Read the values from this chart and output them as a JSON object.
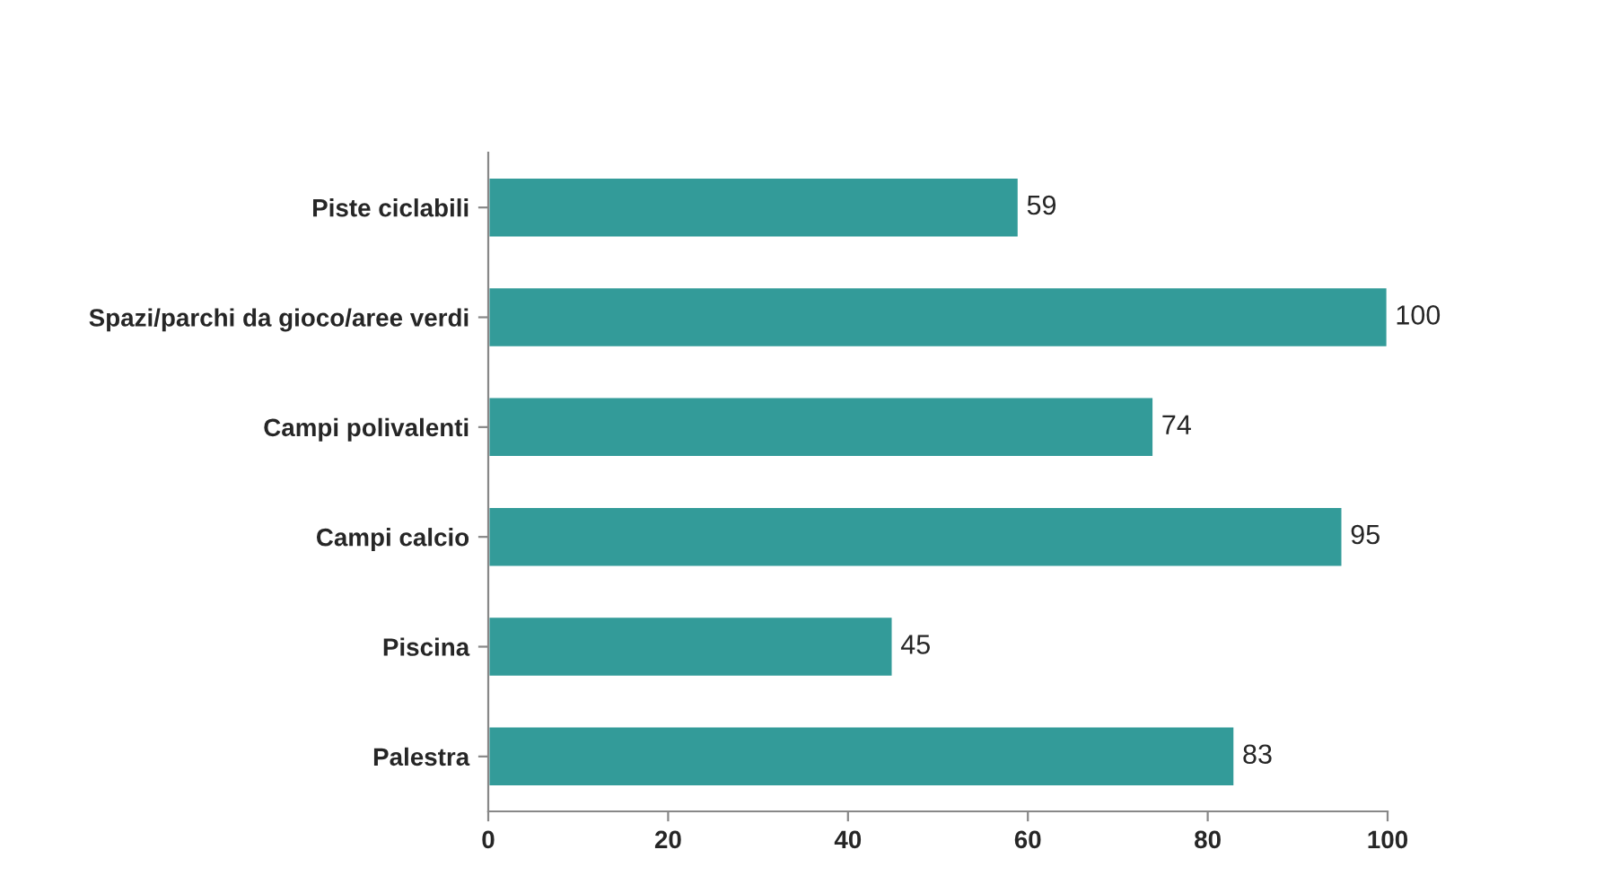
{
  "chart_data": {
    "type": "bar",
    "orientation": "horizontal",
    "categories": [
      "Piste ciclabili",
      "Spazi/parchi da gioco/aree verdi",
      "Campi polivalenti",
      "Campi calcio",
      "Piscina",
      "Palestra"
    ],
    "values": [
      59,
      100,
      74,
      95,
      45,
      83
    ],
    "color": "#339b99",
    "xlim": [
      0,
      100
    ],
    "xticks": [
      0,
      20,
      40,
      60,
      80,
      100
    ],
    "data_labels": true,
    "grid": false,
    "legend": false
  }
}
